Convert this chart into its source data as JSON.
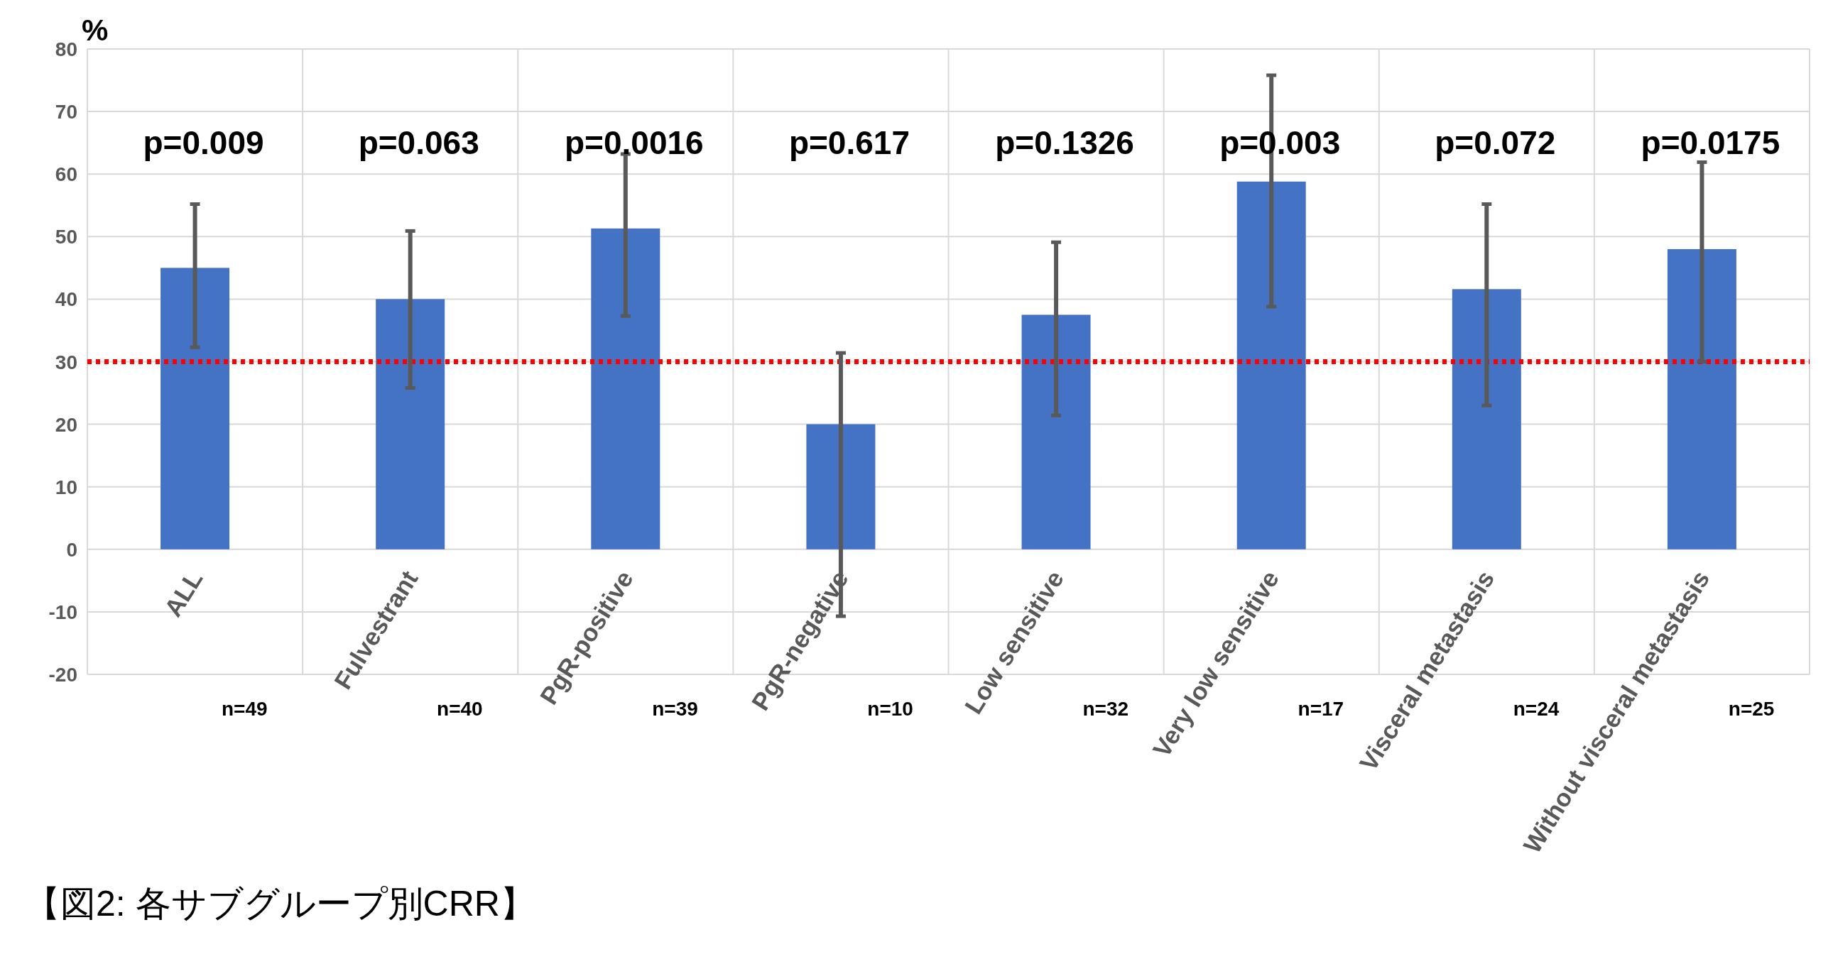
{
  "chart_data": {
    "type": "bar",
    "ylabel": "%",
    "categories": [
      "ALL",
      "Fulvestrant",
      "PgR-positive",
      "PgR-negative",
      "Low sensitive",
      "Very low sensitive",
      "Visceral metastasis",
      "Without visceral metastasis"
    ],
    "values": [
      45,
      40,
      51.3,
      20,
      37.5,
      58.8,
      41.6,
      48
    ],
    "color": "#4472c4",
    "errors": [
      [
        32.3,
        55.2
      ],
      [
        25.8,
        50.9
      ],
      [
        37.3,
        63.2
      ],
      [
        -10.7,
        31.4
      ],
      [
        21.4,
        49.1
      ],
      [
        38.8,
        75.8
      ],
      [
        23,
        55.2
      ],
      [
        30,
        61.9
      ]
    ],
    "ylim": [
      -20,
      80
    ],
    "yticks": [
      -20,
      -10,
      0,
      10,
      20,
      30,
      40,
      50,
      60,
      70,
      80
    ],
    "grid": true,
    "ref_lines": [
      {
        "axis": "y",
        "value": 30,
        "color": "#ff0000",
        "line_style": "dotted"
      }
    ],
    "annotations": [
      "p=0.009",
      "p=0.063",
      "p=0.0016",
      "p=0.617",
      "p=0.1326",
      "p=0.003",
      "p=0.072",
      "p=0.0175",
      "n=49",
      "n=40",
      "n=39",
      "n=10",
      "n=32",
      "n=17",
      "n=24",
      "n=25",
      "【図2: 各サブグループ別CRR】"
    ]
  }
}
